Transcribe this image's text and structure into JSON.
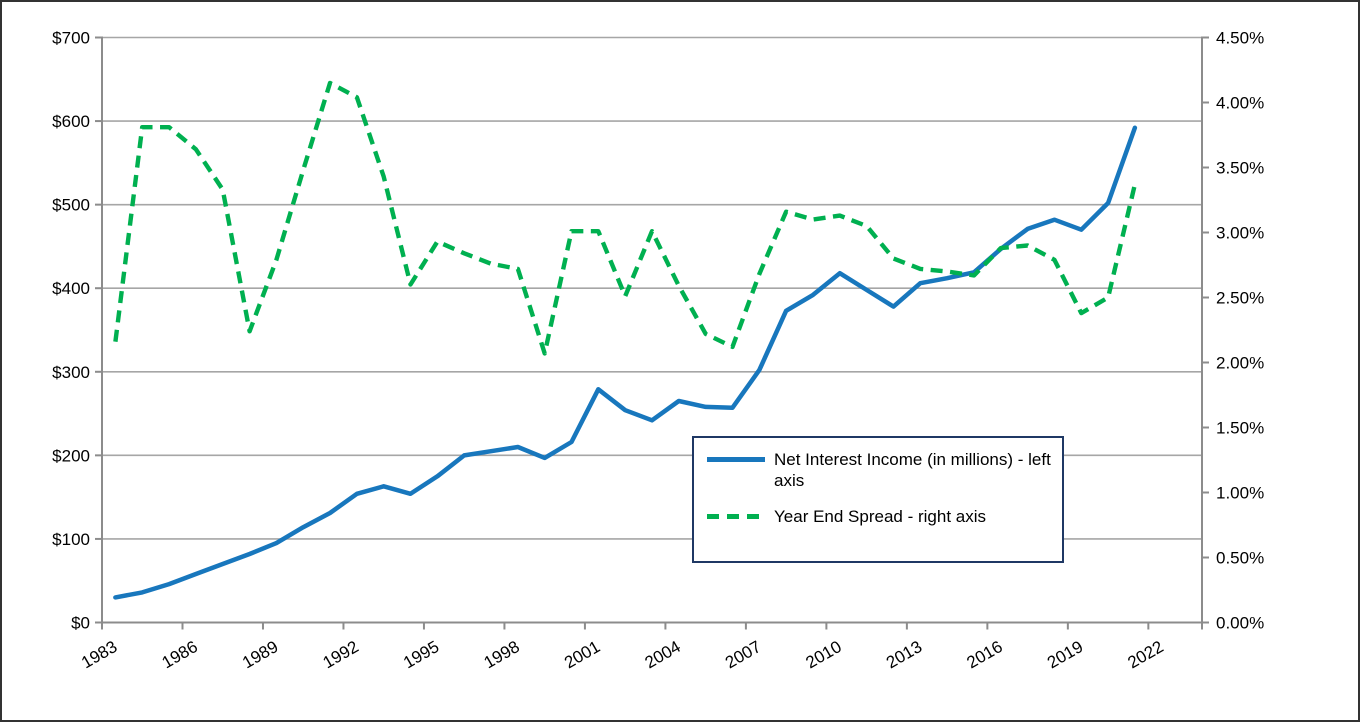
{
  "chart_data": {
    "type": "line",
    "title": "",
    "x_start_year": 1983,
    "x_axis_end_year": 2023,
    "x": [
      1983,
      1984,
      1985,
      1986,
      1987,
      1988,
      1989,
      1990,
      1991,
      1992,
      1993,
      1994,
      1995,
      1996,
      1997,
      1998,
      1999,
      2000,
      2001,
      2002,
      2003,
      2004,
      2005,
      2006,
      2007,
      2008,
      2009,
      2010,
      2011,
      2012,
      2013,
      2014,
      2015,
      2016,
      2017,
      2018,
      2019,
      2020,
      2021
    ],
    "x_tick_labels": [
      "1983",
      "1986",
      "1989",
      "1992",
      "1995",
      "1998",
      "2001",
      "2004",
      "2007",
      "2010",
      "2013",
      "2016",
      "2019",
      "2022"
    ],
    "series": [
      {
        "name": "Net Interest Income (in millions) - left axis",
        "axis": "left",
        "color": "#1877BD",
        "style": "solid",
        "values": [
          30,
          36,
          46,
          58,
          70,
          82,
          95,
          114,
          131,
          154,
          163,
          154,
          175,
          200,
          205,
          210,
          197,
          216,
          279,
          254,
          242,
          265,
          258,
          257,
          302,
          373,
          392,
          418,
          398,
          378,
          406,
          412,
          419,
          447,
          471,
          482,
          470,
          502,
          592
        ]
      },
      {
        "name": "Year End Spread - right axis",
        "axis": "right",
        "color": "#00B050",
        "style": "dashed",
        "values": [
          2.16,
          3.81,
          3.81,
          3.64,
          3.33,
          2.24,
          2.79,
          3.48,
          4.15,
          4.04,
          3.43,
          2.6,
          2.93,
          2.84,
          2.76,
          2.72,
          2.07,
          3.01,
          3.01,
          2.51,
          3.01,
          2.59,
          2.22,
          2.12,
          2.68,
          3.16,
          3.1,
          3.13,
          3.05,
          2.8,
          2.72,
          2.7,
          2.67,
          2.88,
          2.9,
          2.79,
          2.38,
          2.5,
          3.37
        ]
      }
    ],
    "left_axis": {
      "min": 0,
      "max": 700,
      "step": 100,
      "tick_labels": [
        "$0",
        "$100",
        "$200",
        "$300",
        "$400",
        "$500",
        "$600",
        "$700"
      ]
    },
    "right_axis": {
      "min": 0,
      "max": 4.5,
      "step": 0.5,
      "tick_labels": [
        "0.00%",
        "0.50%",
        "1.00%",
        "1.50%",
        "2.00%",
        "2.50%",
        "3.00%",
        "3.50%",
        "4.00%",
        "4.50%"
      ]
    },
    "grid": "horizontal",
    "legend_position": "inside-bottom-right",
    "colors": {
      "gridline": "#A6A6A6",
      "axis": "#8C8C8C",
      "outer_border": "#333333",
      "legend_border": "#1F3864",
      "text": "#000000"
    }
  }
}
